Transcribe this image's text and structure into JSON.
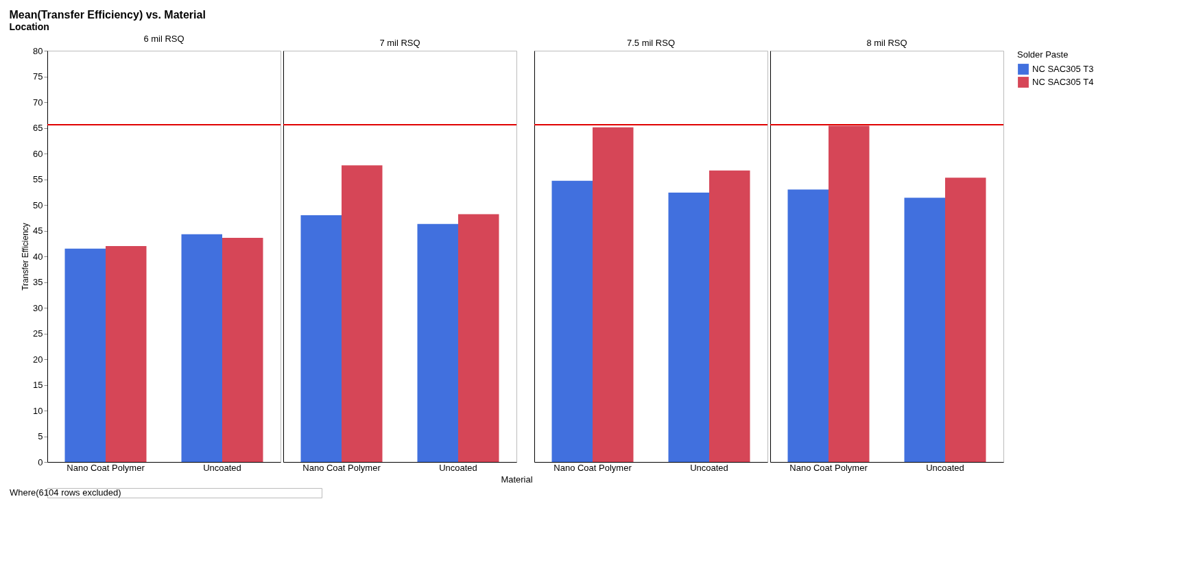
{
  "chart_data": [
    {
      "type": "bar",
      "title": "Mean(Transfer Efficiency) vs. Material",
      "subtitle": "6 mil RSQ",
      "legend": "top right",
      "legend_title": "Solder Paste",
      "annotations": [
        "Location",
        "Where(6104 rows excluded)"
      ],
      "ylabel": "Transfer Efficiency",
      "categories": [
        "Nano Coat Polymer",
        "Uncoated"
      ],
      "series": [
        {
          "name": "NC SAC305 T3",
          "color": "#4170de",
          "values": [
            41.5,
            44.3
          ]
        },
        {
          "name": "NC SAC305 T4",
          "color": "#d64657",
          "values": [
            42.0,
            43.6
          ]
        }
      ],
      "ylim": [
        0,
        80
      ],
      "yticks": [
        0,
        5,
        10,
        15,
        20,
        25,
        30,
        35,
        40,
        45,
        50,
        55,
        60,
        65,
        70,
        75,
        80
      ],
      "ref_lines": [
        {
          "axis": "y",
          "value": 65.6,
          "color": "#e00000"
        }
      ]
    },
    {
      "type": "bar",
      "subtitle": "7 mil RSQ",
      "xlabel": "Material",
      "categories": [
        "Nano Coat Polymer",
        "Uncoated"
      ],
      "series": [
        {
          "color": "#4170de",
          "values": [
            48.0,
            46.3
          ]
        },
        {
          "color": "#d64657",
          "values": [
            57.7,
            48.2
          ]
        }
      ],
      "ylim": [
        0,
        80
      ],
      "tick_labels": "x",
      "ref_lines": [
        {
          "axis": "y",
          "value": 65.6,
          "color": "#e00000"
        }
      ]
    },
    {
      "type": "bar",
      "subtitle": "7.5 mil RSQ",
      "categories": [
        "Nano Coat Polymer",
        "Uncoated"
      ],
      "series": [
        {
          "color": "#4170de",
          "values": [
            54.7,
            52.4
          ]
        },
        {
          "color": "#d64657",
          "values": [
            65.1,
            56.7
          ]
        }
      ],
      "ylim": [
        0,
        80
      ],
      "tick_labels": "x",
      "ref_lines": [
        {
          "axis": "y",
          "value": 65.6,
          "color": "#e00000"
        }
      ]
    },
    {
      "type": "bar",
      "subtitle": "8 mil RSQ",
      "categories": [
        "Nano Coat Polymer",
        "Uncoated"
      ],
      "series": [
        {
          "color": "#4170de",
          "values": [
            53.0,
            51.4
          ]
        },
        {
          "color": "#d64657",
          "values": [
            65.4,
            55.3
          ]
        }
      ],
      "ylim": [
        0,
        80
      ],
      "tick_labels": "x",
      "ref_lines": [
        {
          "axis": "y",
          "value": 65.6,
          "color": "#e00000"
        }
      ]
    }
  ]
}
